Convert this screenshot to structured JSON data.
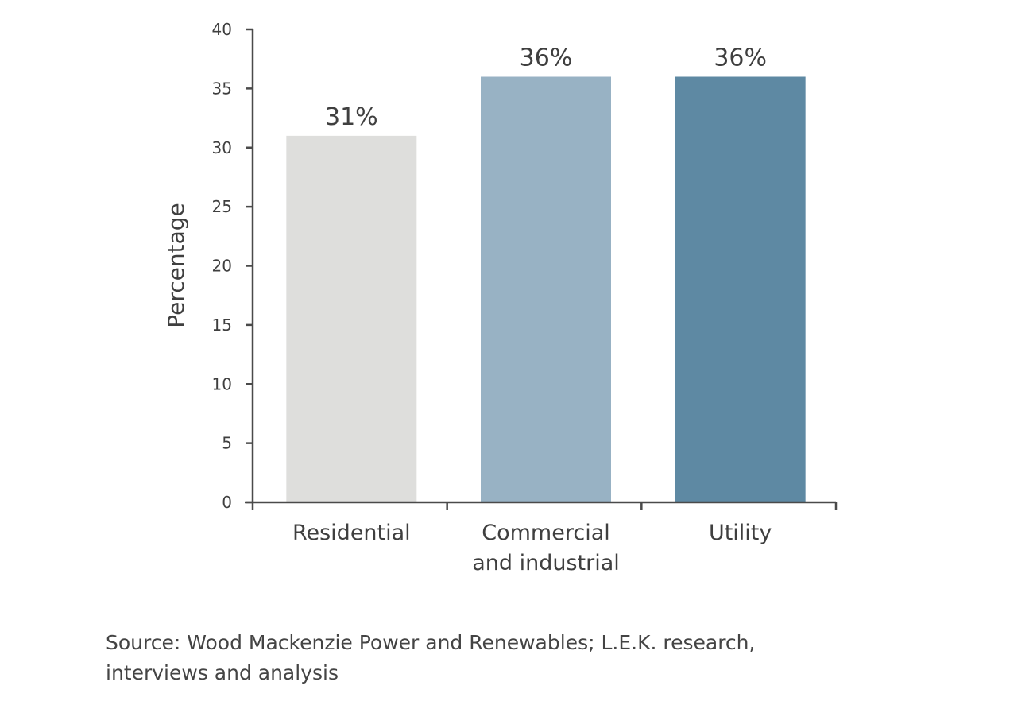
{
  "chart_data": {
    "type": "bar",
    "title": "",
    "xlabel": "",
    "ylabel": "Percentage",
    "ylim": [
      0,
      40
    ],
    "yticks": [
      0,
      5,
      10,
      15,
      20,
      25,
      30,
      35,
      40
    ],
    "grid": false,
    "legend": null,
    "categories": [
      "Residential",
      "Commercial and industrial",
      "Utility"
    ],
    "category_lines": [
      [
        "Residential"
      ],
      [
        "Commercial",
        "and industrial"
      ],
      [
        "Utility"
      ]
    ],
    "values": [
      31,
      36,
      36
    ],
    "data_labels": [
      "31%",
      "36%",
      "36%"
    ],
    "colors": [
      "#dededc",
      "#98b2c4",
      "#5e89a3"
    ]
  },
  "source_note": "Source: Wood Mackenzie Power and Renewables; L.E.K. research, interviews and analysis",
  "colors": {
    "axis": "#4a4a4a",
    "text": "#3f3f3f"
  }
}
